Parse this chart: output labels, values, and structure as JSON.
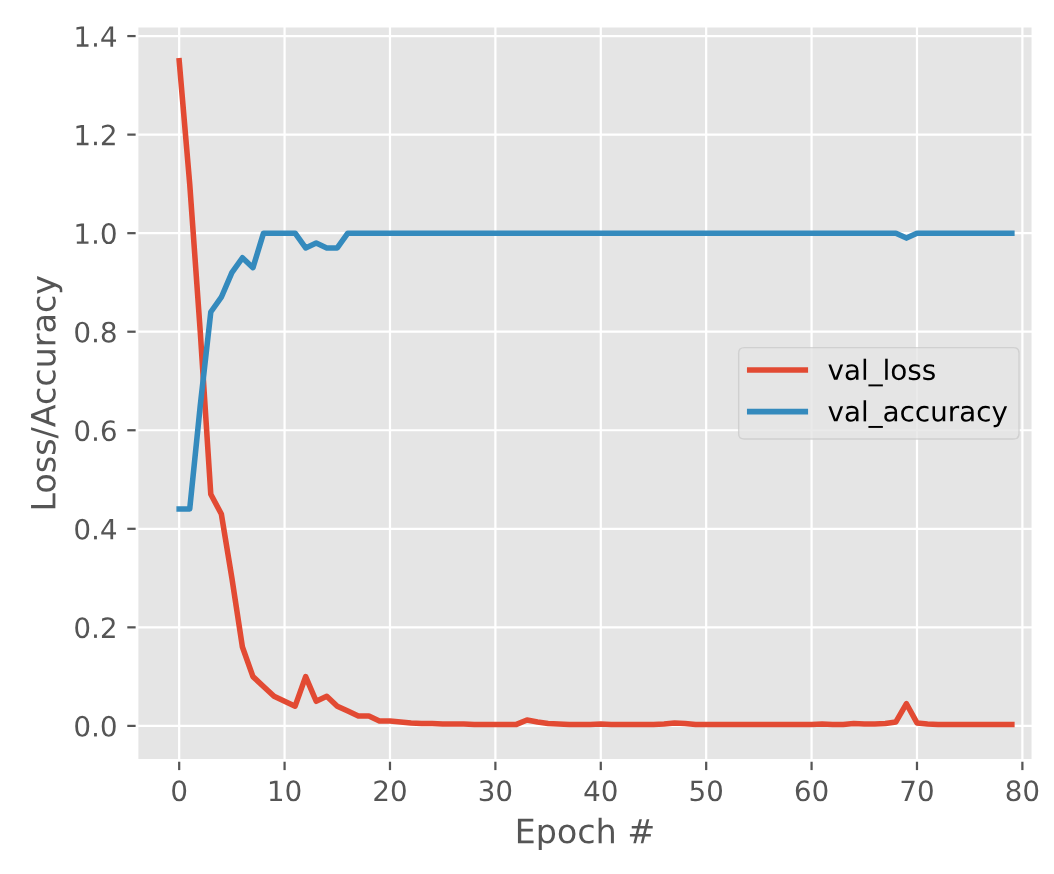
{
  "chart_data": {
    "type": "line",
    "xlabel": "Epoch #",
    "ylabel": "Loss/Accuracy",
    "x": [
      0,
      1,
      2,
      3,
      4,
      5,
      6,
      7,
      8,
      9,
      10,
      11,
      12,
      13,
      14,
      15,
      16,
      17,
      18,
      19,
      20,
      21,
      22,
      23,
      24,
      25,
      26,
      27,
      28,
      29,
      30,
      31,
      32,
      33,
      34,
      35,
      36,
      37,
      38,
      39,
      40,
      41,
      42,
      43,
      44,
      45,
      46,
      47,
      48,
      49,
      50,
      51,
      52,
      53,
      54,
      55,
      56,
      57,
      58,
      59,
      60,
      61,
      62,
      63,
      64,
      65,
      66,
      67,
      68,
      69,
      70,
      71,
      72,
      73,
      74,
      75,
      76,
      77,
      78,
      79
    ],
    "series": [
      {
        "name": "val_loss",
        "color": "#e24a33",
        "values": [
          1.35,
          1.1,
          0.8,
          0.47,
          0.43,
          0.3,
          0.16,
          0.1,
          0.08,
          0.06,
          0.05,
          0.04,
          0.1,
          0.05,
          0.06,
          0.04,
          0.03,
          0.02,
          0.02,
          0.01,
          0.01,
          0.008,
          0.006,
          0.005,
          0.005,
          0.004,
          0.004,
          0.004,
          0.003,
          0.003,
          0.003,
          0.003,
          0.003,
          0.012,
          0.008,
          0.005,
          0.004,
          0.003,
          0.003,
          0.003,
          0.004,
          0.003,
          0.003,
          0.003,
          0.003,
          0.003,
          0.004,
          0.006,
          0.005,
          0.003,
          0.003,
          0.003,
          0.003,
          0.003,
          0.003,
          0.003,
          0.003,
          0.003,
          0.003,
          0.003,
          0.003,
          0.004,
          0.003,
          0.003,
          0.005,
          0.004,
          0.004,
          0.005,
          0.008,
          0.045,
          0.006,
          0.004,
          0.003,
          0.003,
          0.003,
          0.003,
          0.003,
          0.003,
          0.003,
          0.003
        ]
      },
      {
        "name": "val_accuracy",
        "color": "#348abd",
        "values": [
          0.44,
          0.44,
          0.65,
          0.84,
          0.87,
          0.92,
          0.95,
          0.93,
          1.0,
          1.0,
          1.0,
          1.0,
          0.97,
          0.98,
          0.97,
          0.97,
          1.0,
          1.0,
          1.0,
          1.0,
          1.0,
          1.0,
          1.0,
          1.0,
          1.0,
          1.0,
          1.0,
          1.0,
          1.0,
          1.0,
          1.0,
          1.0,
          1.0,
          1.0,
          1.0,
          1.0,
          1.0,
          1.0,
          1.0,
          1.0,
          1.0,
          1.0,
          1.0,
          1.0,
          1.0,
          1.0,
          1.0,
          1.0,
          1.0,
          1.0,
          1.0,
          1.0,
          1.0,
          1.0,
          1.0,
          1.0,
          1.0,
          1.0,
          1.0,
          1.0,
          1.0,
          1.0,
          1.0,
          1.0,
          1.0,
          1.0,
          1.0,
          1.0,
          1.0,
          0.99,
          1.0,
          1.0,
          1.0,
          1.0,
          1.0,
          1.0,
          1.0,
          1.0,
          1.0,
          1.0
        ]
      }
    ],
    "xlim": [
      -4,
      81
    ],
    "ylim": [
      -0.07,
      1.42
    ],
    "xticks": [
      0,
      10,
      20,
      30,
      40,
      50,
      60,
      70,
      80
    ],
    "yticks": [
      {
        "value": 0,
        "label": "0.0"
      },
      {
        "value": 0.2,
        "label": "0.2"
      },
      {
        "value": 0.4,
        "label": "0.4"
      },
      {
        "value": 0.6,
        "label": "0.6"
      },
      {
        "value": 0.8,
        "label": "0.8"
      },
      {
        "value": 1.0,
        "label": "1.0"
      },
      {
        "value": 1.2,
        "label": "1.2"
      },
      {
        "value": 1.4,
        "label": "1.4"
      }
    ],
    "grid": true,
    "legend": "center right"
  }
}
